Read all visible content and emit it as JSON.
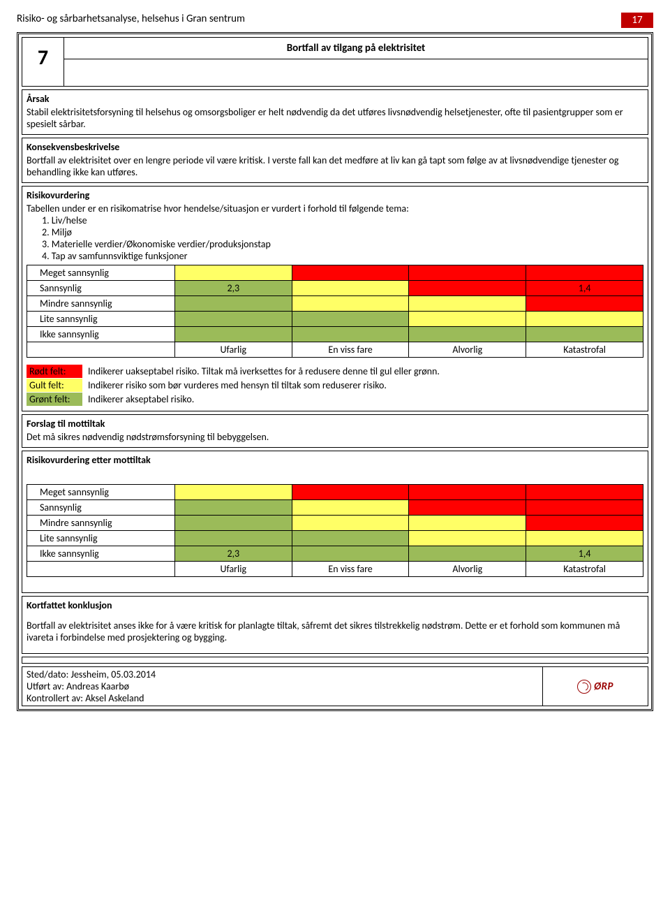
{
  "header": {
    "doc_title": "Risiko- og sårbarhetsanalyse, helsehus i Gran sentrum",
    "page_number": "17"
  },
  "section": {
    "number": "7",
    "title": "Bortfall av tilgang på elektrisitet"
  },
  "arsak": {
    "heading": "Årsak",
    "text": "Stabil elektrisitetsforsyning til helsehus og omsorgsboliger er helt nødvendig da det utføres livsnødvendig helsetjenester, ofte til pasientgrupper som er spesielt sårbar."
  },
  "konsekvens": {
    "heading": "Konsekvensbeskrivelse",
    "text": "Bortfall av elektrisitet over en lengre periode vil være kritisk. I verste fall kan det medføre at liv kan gå tapt som følge av at livsnødvendige tjenester og behandling ikke kan utføres."
  },
  "risiko": {
    "heading": "Risikovurdering",
    "intro": "Tabellen under er en risikomatrise hvor hendelse/situasjon er vurdert i forhold til følgende tema:",
    "items": [
      "1.  Liv/helse",
      "2.  Miljø",
      "3.  Materielle verdier/Økonomiske verdier/produksjonstap",
      "4.  Tap av samfunnsviktige funksjoner"
    ]
  },
  "matrix1": {
    "row_labels": [
      "Meget sannsynlig",
      "Sannsynlig",
      "Mindre sannsynlig",
      "Lite sannsynlig",
      "Ikke sannsynlig"
    ],
    "col_labels": [
      "Ufarlig",
      "En viss fare",
      "Alvorlig",
      "Katastrofal"
    ],
    "rows": [
      [
        {
          "c": "y",
          "t": ""
        },
        {
          "c": "r",
          "t": ""
        },
        {
          "c": "r",
          "t": ""
        },
        {
          "c": "r",
          "t": ""
        }
      ],
      [
        {
          "c": "g",
          "t": "2,3"
        },
        {
          "c": "y",
          "t": ""
        },
        {
          "c": "r",
          "t": ""
        },
        {
          "c": "r",
          "t": "1,4"
        }
      ],
      [
        {
          "c": "g",
          "t": ""
        },
        {
          "c": "y",
          "t": ""
        },
        {
          "c": "y",
          "t": ""
        },
        {
          "c": "r",
          "t": ""
        }
      ],
      [
        {
          "c": "g",
          "t": ""
        },
        {
          "c": "g",
          "t": ""
        },
        {
          "c": "y",
          "t": ""
        },
        {
          "c": "y",
          "t": ""
        }
      ],
      [
        {
          "c": "g",
          "t": ""
        },
        {
          "c": "g",
          "t": ""
        },
        {
          "c": "g",
          "t": ""
        },
        {
          "c": "g",
          "t": ""
        }
      ]
    ]
  },
  "legend": {
    "red": {
      "label": "Rødt felt:",
      "text": "Indikerer uakseptabel risiko. Tiltak må iverksettes for å redusere denne til gul eller grønn."
    },
    "yellow": {
      "label": "Gult felt:",
      "text": "Indikerer risiko som bør vurderes med hensyn til tiltak som reduserer risiko."
    },
    "green": {
      "label": "Grønt felt:",
      "text": "Indikerer akseptabel risiko."
    }
  },
  "forslag": {
    "heading": "Forslag til mottiltak",
    "text": "Det må sikres nødvendig nødstrømsforsyning til bebyggelsen."
  },
  "etter": {
    "heading": "Risikovurdering etter mottiltak"
  },
  "matrix2": {
    "row_labels": [
      "Meget sannsynlig",
      "Sannsynlig",
      "Mindre sannsynlig",
      "Lite sannsynlig",
      "Ikke sannsynlig"
    ],
    "col_labels": [
      "Ufarlig",
      "En viss fare",
      "Alvorlig",
      "Katastrofal"
    ],
    "rows": [
      [
        {
          "c": "y",
          "t": ""
        },
        {
          "c": "r",
          "t": ""
        },
        {
          "c": "r",
          "t": ""
        },
        {
          "c": "r",
          "t": ""
        }
      ],
      [
        {
          "c": "g",
          "t": ""
        },
        {
          "c": "y",
          "t": ""
        },
        {
          "c": "r",
          "t": ""
        },
        {
          "c": "r",
          "t": ""
        }
      ],
      [
        {
          "c": "g",
          "t": ""
        },
        {
          "c": "y",
          "t": ""
        },
        {
          "c": "y",
          "t": ""
        },
        {
          "c": "r",
          "t": ""
        }
      ],
      [
        {
          "c": "g",
          "t": ""
        },
        {
          "c": "g",
          "t": ""
        },
        {
          "c": "y",
          "t": ""
        },
        {
          "c": "y",
          "t": ""
        }
      ],
      [
        {
          "c": "g",
          "t": "2,3"
        },
        {
          "c": "g",
          "t": ""
        },
        {
          "c": "g",
          "t": ""
        },
        {
          "c": "g",
          "t": "1,4"
        }
      ]
    ]
  },
  "konklusjon": {
    "heading": "Kortfattet konklusjon",
    "text": "Bortfall av elektrisitet anses ikke for å være kritisk for planlagte tiltak, såfremt det sikres tilstrekkelig nødstrøm. Dette er et forhold som kommunen må ivareta i forbindelse med prosjektering og bygging."
  },
  "footer": {
    "sted": "Sted/dato: Jessheim, 05.03.2014",
    "utfort": "Utført av: Andreas Kaarbø",
    "kontrollert": "Kontrollert av: Aksel Askeland",
    "logo_text": "ØRP"
  },
  "colors": {
    "green": "#9bbb59",
    "yellow": "#ffff66",
    "red": "#ff0000",
    "badge": "#c00000"
  }
}
